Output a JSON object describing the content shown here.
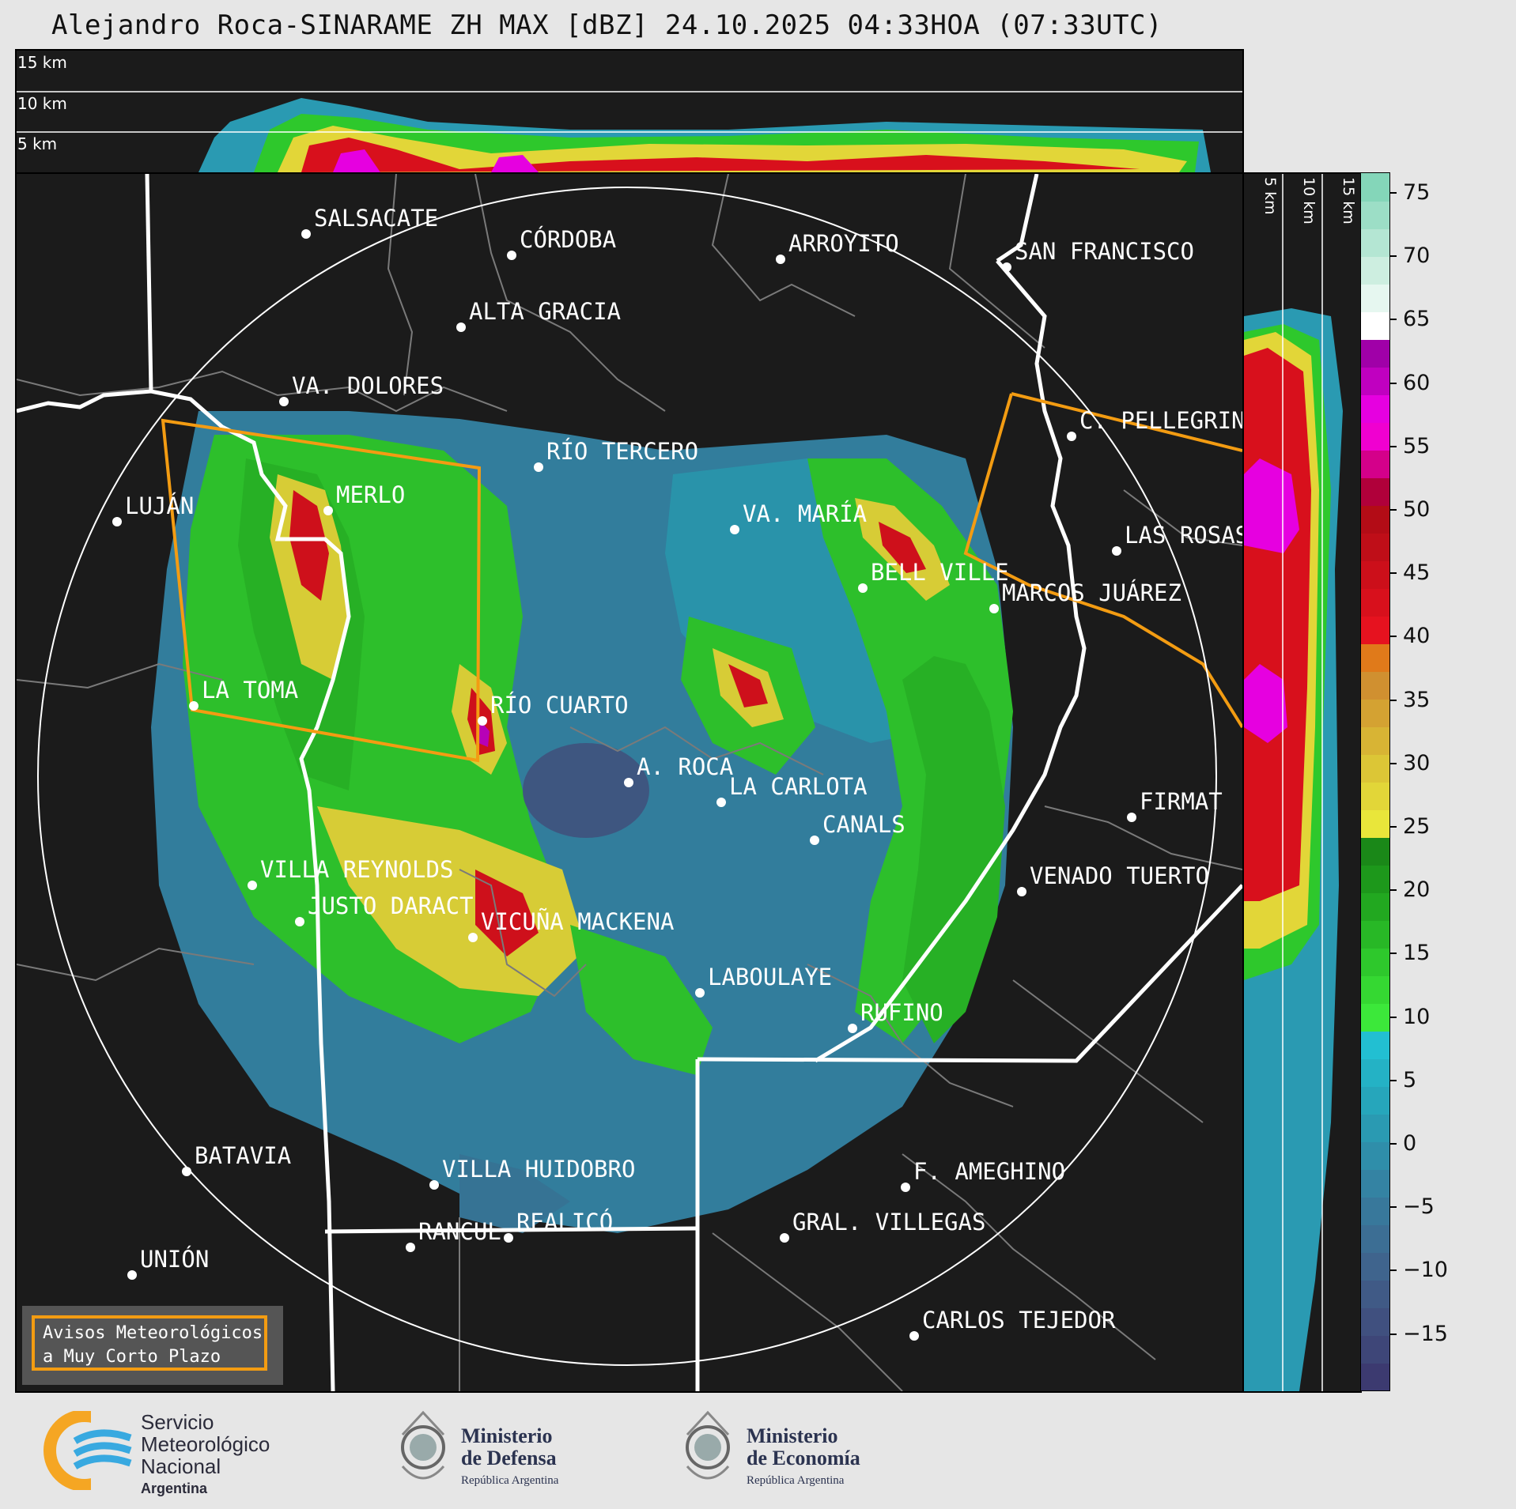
{
  "title": "Alejandro Roca-SINARAME ZH MAX [dBZ] 24.10.2025 04:33HOA (07:33UTC)",
  "altitude_labels": {
    "top": [
      "15 km",
      "10 km",
      "5 km"
    ],
    "side": [
      "5 km",
      "10 km",
      "15 km"
    ]
  },
  "colorbar": {
    "ticks": [
      "75",
      "70",
      "65",
      "60",
      "55",
      "50",
      "45",
      "40",
      "35",
      "30",
      "25",
      "20",
      "15",
      "10",
      "5",
      "0",
      "−5",
      "−10",
      "−15"
    ],
    "colors": [
      "#3c3a70",
      "#3e4678",
      "#40507f",
      "#405a86",
      "#3f648d",
      "#3c6e94",
      "#38789b",
      "#3483a3",
      "#2f8eaa",
      "#2a9ab2",
      "#26a6bb",
      "#24b2c5",
      "#22bfd2",
      "#3ce83a",
      "#35d832",
      "#2ec82c",
      "#28b826",
      "#22a820",
      "#1d981b",
      "#1a8818",
      "#e9e63a",
      "#e2d638",
      "#dcc636",
      "#d8b434",
      "#d4a232",
      "#d09030",
      "#e07a1a",
      "#e6121f",
      "#d8101c",
      "#cc0f1a",
      "#bf0e18",
      "#b30c16",
      "#b0003a",
      "#d4008a",
      "#f000d0",
      "#e600e0",
      "#c000c0",
      "#a000a8",
      "#ffffff",
      "#e6f7f0",
      "#cdeee0",
      "#b4e6d3",
      "#9cdec6",
      "#84d6b9"
    ]
  },
  "warning_box": {
    "line1": "Avisos Meteorológicos",
    "line2": "a Muy Corto Plazo"
  },
  "cities": [
    {
      "name": "SALSACATE"
    },
    {
      "name": "CÓRDOBA"
    },
    {
      "name": "ARROYITO"
    },
    {
      "name": "SAN FRANCISCO"
    },
    {
      "name": "ALTA GRACIA"
    },
    {
      "name": "VA. DOLORES"
    },
    {
      "name": "C. PELLEGRINI"
    },
    {
      "name": "RÍO TERCERO"
    },
    {
      "name": "MERLO"
    },
    {
      "name": "LUJÁN"
    },
    {
      "name": "VA. MARÍA"
    },
    {
      "name": "LAS ROSAS"
    },
    {
      "name": "BELL VILLE"
    },
    {
      "name": "MARCOS JUÁREZ"
    },
    {
      "name": "LA TOMA"
    },
    {
      "name": "RÍO CUARTO"
    },
    {
      "name": "A. ROCA"
    },
    {
      "name": "LA CARLOTA"
    },
    {
      "name": "FIRMAT"
    },
    {
      "name": "CANALS"
    },
    {
      "name": "VILLA REYNOLDS"
    },
    {
      "name": "VENADO TUERTO"
    },
    {
      "name": "JUSTO DARACT"
    },
    {
      "name": "VICUÑA MACKENA"
    },
    {
      "name": "LABOULAYE"
    },
    {
      "name": "RUFINO"
    },
    {
      "name": "BATAVIA"
    },
    {
      "name": "VILLA HUIDOBRO"
    },
    {
      "name": "F. AMEGHINO"
    },
    {
      "name": "REALICÓ"
    },
    {
      "name": "RANCUL"
    },
    {
      "name": "GRAL. VILLEGAS"
    },
    {
      "name": "UNIÓN"
    },
    {
      "name": "CARLOS TEJEDOR"
    }
  ],
  "logos": {
    "smn": {
      "line1": "Servicio",
      "line2": "Meteorológico",
      "line3": "Nacional",
      "line4": "Argentina"
    },
    "defensa": {
      "line1": "Ministerio",
      "line2": "de Defensa",
      "line3": "República Argentina"
    },
    "economia": {
      "line1": "Ministerio",
      "line2": "de Economía",
      "line3": "República Argentina"
    }
  }
}
